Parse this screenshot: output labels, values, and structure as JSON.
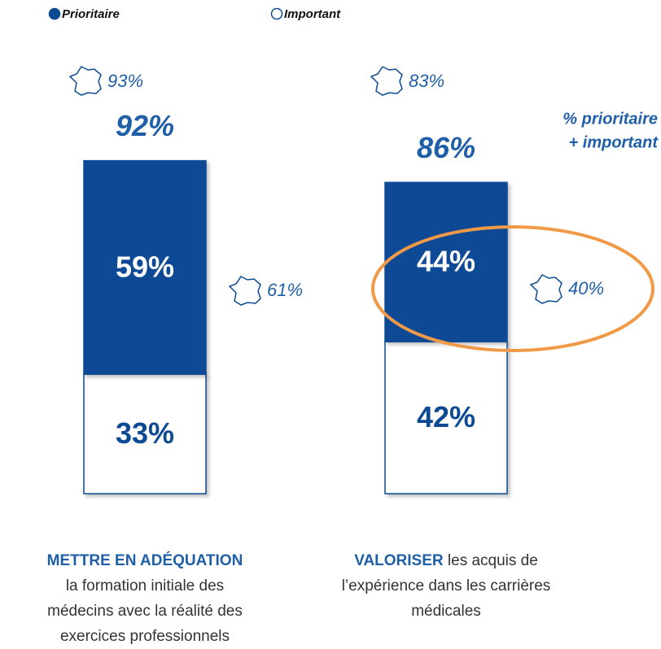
{
  "chart_data": {
    "type": "stacked-bar",
    "categories": [
      {
        "emphasis": "METTRE EN ADÉQUATION",
        "rest": "la formation initiale des médecins avec la réalité des exercices professionnels"
      },
      {
        "emphasis": "VALORISER",
        "rest": "les acquis de l’expérience dans les carrières médicales"
      }
    ],
    "series": [
      {
        "name": "Prioritaire",
        "color": "#0d4a94",
        "label_color": "#ffffff",
        "values": [
          59,
          44
        ],
        "value_labels": [
          "59%",
          "44%"
        ]
      },
      {
        "name": "Important",
        "color": "#ffffff",
        "label_color": "#0d4a94",
        "values": [
          33,
          42
        ],
        "value_labels": [
          "33%",
          "42%"
        ]
      }
    ],
    "totals": {
      "values": [
        92,
        86
      ],
      "value_labels": [
        "92%",
        "86%"
      ]
    },
    "totals_label": [
      "% prioritaire",
      "+ important"
    ],
    "france_total": {
      "values": [
        93,
        83
      ],
      "value_labels": [
        "93%",
        "83%"
      ]
    },
    "france_prioritaire": {
      "values": [
        61,
        40
      ],
      "value_labels": [
        "61%",
        "40%"
      ]
    }
  }
}
